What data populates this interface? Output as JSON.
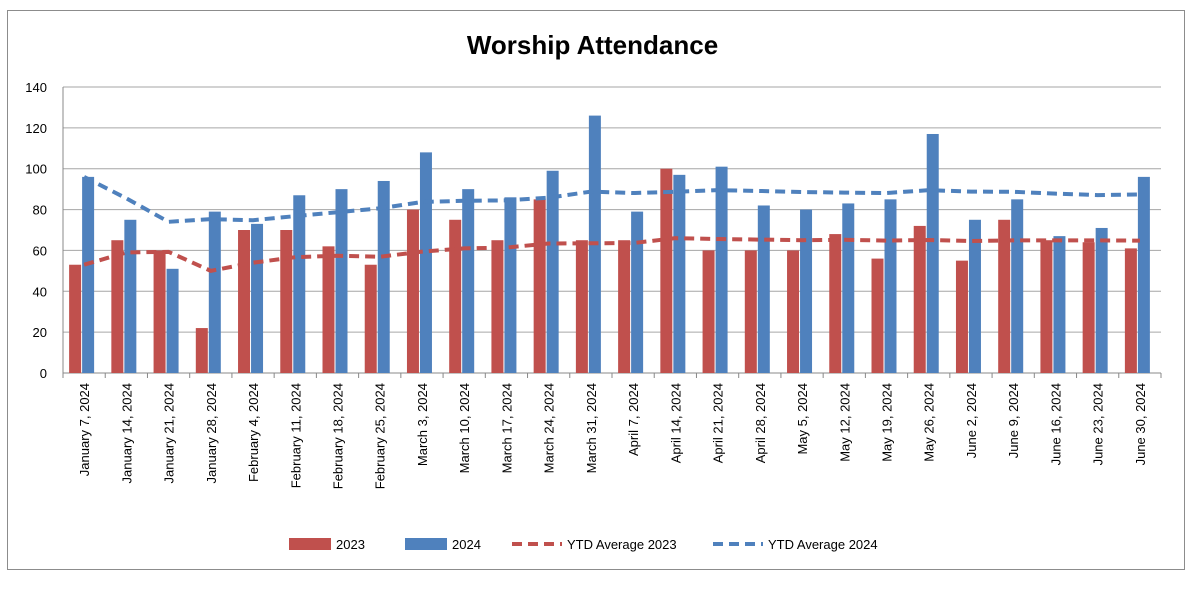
{
  "chart_data": {
    "type": "bar",
    "title": "Worship Attendance",
    "xlabel": "",
    "ylabel": "",
    "ylim": [
      0,
      140
    ],
    "yticks": [
      0,
      20,
      40,
      60,
      80,
      100,
      120,
      140
    ],
    "grid": true,
    "legend": "bottom",
    "categories": [
      "January 7, 2024",
      "January 14, 2024",
      "January 21, 2024",
      "January 28, 2024",
      "February 4, 2024",
      "February 11, 2024",
      "February 18, 2024",
      "February 25, 2024",
      "March 3, 2024",
      "March 10, 2024",
      "March 17, 2024",
      "March 24, 2024",
      "March 31, 2024",
      "April 7, 2024",
      "April 14, 2024",
      "April 21, 2024",
      "April 28, 2024",
      "May 5, 2024",
      "May 12, 2024",
      "May 19, 2024",
      "May 26, 2024",
      "June 2, 2024",
      "June 9, 2024",
      "June 16, 2024",
      "June 23, 2024",
      "June 30, 2024"
    ],
    "series": [
      {
        "name": "2023",
        "kind": "bar",
        "color": "#C0504D",
        "values": [
          53,
          65,
          60,
          22,
          70,
          70,
          62,
          53,
          80,
          75,
          65,
          85,
          65,
          65,
          100,
          60,
          60,
          60,
          68,
          56,
          72,
          55,
          75,
          65,
          64,
          61
        ]
      },
      {
        "name": "2024",
        "kind": "bar",
        "color": "#4F81BD",
        "values": [
          96,
          75,
          51,
          79,
          73,
          87,
          90,
          94,
          108,
          90,
          86,
          99,
          126,
          79,
          97,
          101,
          82,
          80,
          83,
          85,
          117,
          75,
          85,
          67,
          71,
          96
        ]
      },
      {
        "name": "YTD Average 2023",
        "kind": "line",
        "dashed": true,
        "color": "#C0504D",
        "values": [
          53,
          59,
          59.3,
          50,
          54,
          56.7,
          57.4,
          56.9,
          59.4,
          61,
          61.4,
          63.4,
          63.5,
          63.6,
          66,
          65.6,
          65.3,
          65,
          65.2,
          64.8,
          65.1,
          64.6,
          64.9,
          64.9,
          64.9,
          64.8
        ]
      },
      {
        "name": "YTD Average 2024",
        "kind": "line",
        "dashed": true,
        "color": "#4F81BD",
        "values": [
          96,
          85.5,
          74,
          75.3,
          74.8,
          76.8,
          78.7,
          80.6,
          83.7,
          84.3,
          84.5,
          85.8,
          88.8,
          88.1,
          88.7,
          89.5,
          89.1,
          88.6,
          88.3,
          88.1,
          89.5,
          88.8,
          88.7,
          87.8,
          87.1,
          87.4
        ]
      }
    ]
  }
}
